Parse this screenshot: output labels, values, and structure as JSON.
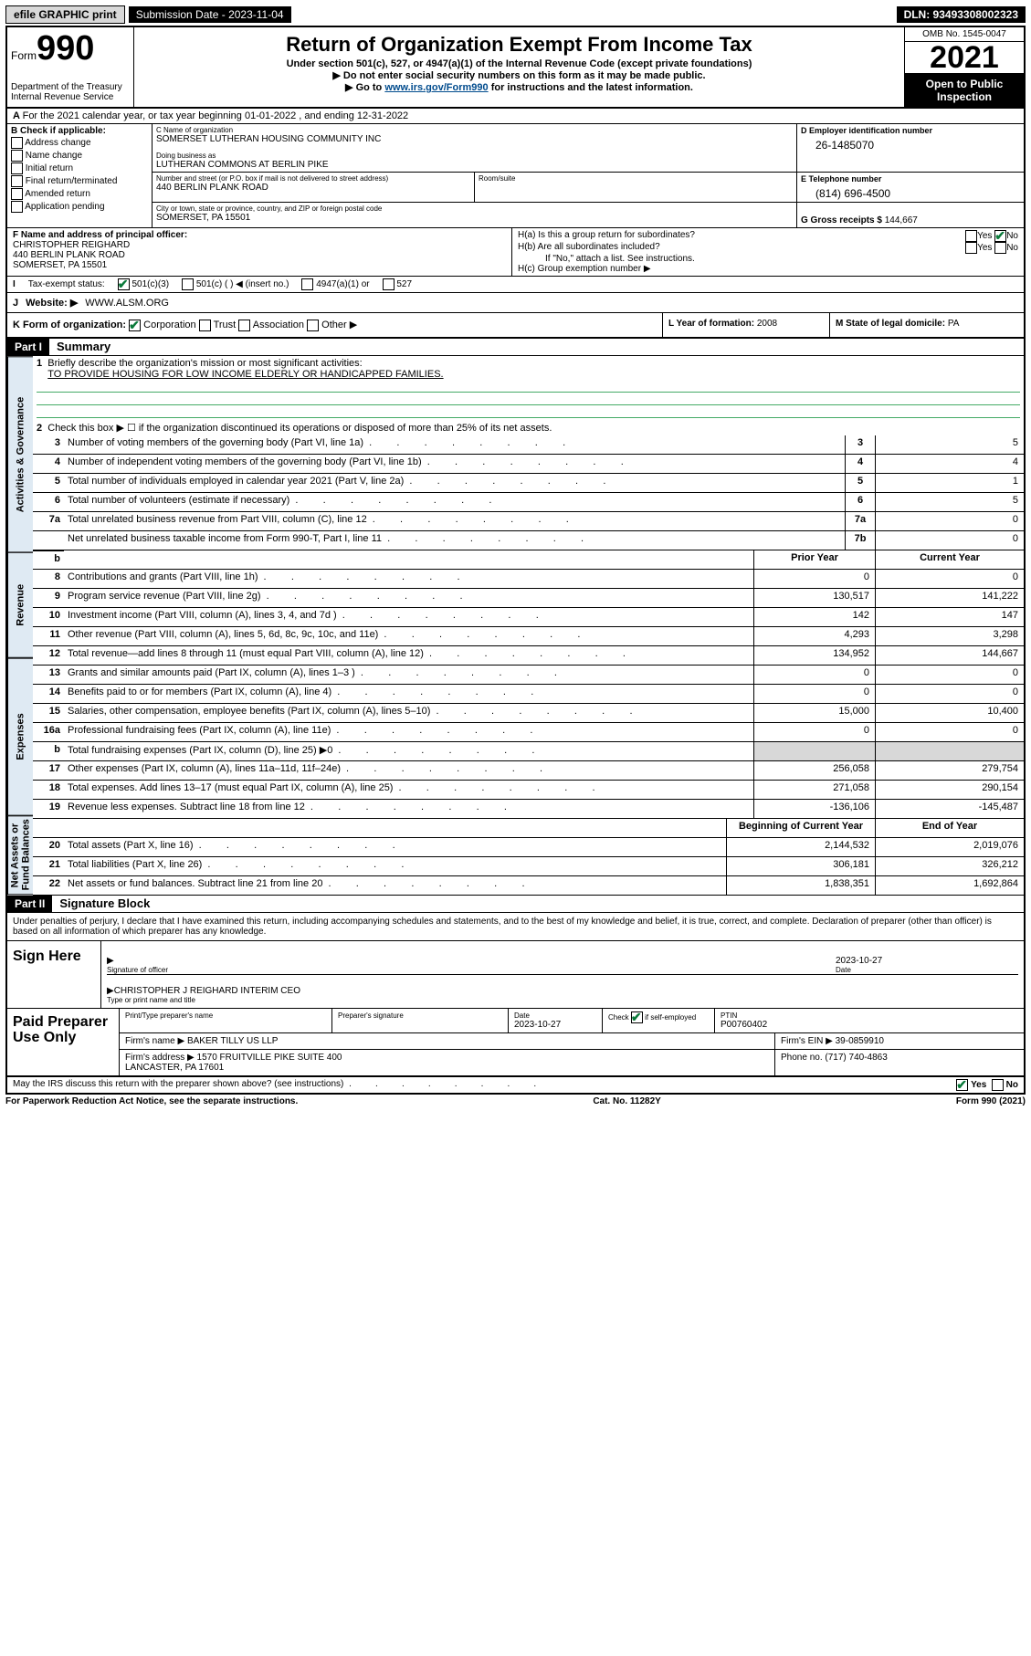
{
  "topbar": {
    "efile": "efile GRAPHIC print",
    "sub_date_label": "Submission Date - ",
    "sub_date": "2023-11-04",
    "dln": "DLN: 93493308002323"
  },
  "header": {
    "form_label": "Form",
    "form_num": "990",
    "dept": "Department of the Treasury\nInternal Revenue Service",
    "title": "Return of Organization Exempt From Income Tax",
    "sub1": "Under section 501(c), 527, or 4947(a)(1) of the Internal Revenue Code (except private foundations)",
    "sub2": "▶ Do not enter social security numbers on this form as it may be made public.",
    "sub3_pre": "▶ Go to ",
    "sub3_link": "www.irs.gov/Form990",
    "sub3_post": " for instructions and the latest information.",
    "omb": "OMB No. 1545-0047",
    "year": "2021",
    "open": "Open to Public Inspection"
  },
  "rowA": "For the 2021 calendar year, or tax year beginning 01-01-2022   , and ending 12-31-2022",
  "colB": {
    "label": "B Check if applicable:",
    "items": [
      "Address change",
      "Name change",
      "Initial return",
      "Final return/terminated",
      "Amended return",
      "Application pending"
    ]
  },
  "C": {
    "name_lbl": "C Name of organization",
    "name": "SOMERSET LUTHERAN HOUSING COMMUNITY INC",
    "dba_lbl": "Doing business as",
    "dba": "LUTHERAN COMMONS AT BERLIN PIKE",
    "addr_lbl": "Number and street (or P.O. box if mail is not delivered to street address)",
    "addr": "440 BERLIN PLANK ROAD",
    "room_lbl": "Room/suite",
    "city_lbl": "City or town, state or province, country, and ZIP or foreign postal code",
    "city": "SOMERSET, PA  15501"
  },
  "D": {
    "lbl": "D Employer identification number",
    "val": "26-1485070"
  },
  "E": {
    "lbl": "E Telephone number",
    "val": "(814) 696-4500"
  },
  "G": {
    "lbl": "G Gross receipts $",
    "val": "144,667"
  },
  "F": {
    "lbl": "F  Name and address of principal officer:",
    "name": "CHRISTOPHER REIGHARD",
    "addr1": "440 BERLIN PLANK ROAD",
    "addr2": "SOMERSET, PA  15501"
  },
  "H": {
    "a": "H(a)  Is this a group return for subordinates?",
    "b": "H(b)  Are all subordinates included?",
    "bnote": "If \"No,\" attach a list. See instructions.",
    "c": "H(c)  Group exemption number ▶",
    "yes": "Yes",
    "no": "No"
  },
  "I": {
    "lbl": "Tax-exempt status:",
    "opt1": "501(c)(3)",
    "opt2": "501(c) (  ) ◀ (insert no.)",
    "opt3": "4947(a)(1) or",
    "opt4": "527"
  },
  "J": {
    "lbl": "Website: ▶",
    "val": "WWW.ALSM.ORG"
  },
  "K": {
    "lbl": "K Form of organization:",
    "opts": [
      "Corporation",
      "Trust",
      "Association",
      "Other ▶"
    ]
  },
  "L": {
    "lbl": "L Year of formation:",
    "val": "2008"
  },
  "M": {
    "lbl": "M State of legal domicile:",
    "val": "PA"
  },
  "part1": {
    "tag": "Part I",
    "title": "Summary",
    "line1_lbl": "Briefly describe the organization's mission or most significant activities:",
    "line1_val": "TO PROVIDE HOUSING FOR LOW INCOME ELDERLY OR HANDICAPPED FAMILIES.",
    "line2": "Check this box ▶ ☐  if the organization discontinued its operations or disposed of more than 25% of its net assets.",
    "tabs": [
      "Activities & Governance",
      "Revenue",
      "Expenses",
      "Net Assets or Fund Balances"
    ],
    "head_prior": "Prior Year",
    "head_curr": "Current Year",
    "head_beg": "Beginning of Current Year",
    "head_end": "End of Year",
    "lines_top": [
      {
        "n": "3",
        "d": "Number of voting members of the governing body (Part VI, line 1a)",
        "b": "3",
        "v": "5"
      },
      {
        "n": "4",
        "d": "Number of independent voting members of the governing body (Part VI, line 1b)",
        "b": "4",
        "v": "4"
      },
      {
        "n": "5",
        "d": "Total number of individuals employed in calendar year 2021 (Part V, line 2a)",
        "b": "5",
        "v": "1"
      },
      {
        "n": "6",
        "d": "Total number of volunteers (estimate if necessary)",
        "b": "6",
        "v": "5"
      },
      {
        "n": "7a",
        "d": "Total unrelated business revenue from Part VIII, column (C), line 12",
        "b": "7a",
        "v": "0"
      },
      {
        "n": "",
        "d": "Net unrelated business taxable income from Form 990-T, Part I, line 11",
        "b": "7b",
        "v": "0"
      }
    ],
    "lines_rev": [
      {
        "n": "8",
        "d": "Contributions and grants (Part VIII, line 1h)",
        "p": "0",
        "c": "0"
      },
      {
        "n": "9",
        "d": "Program service revenue (Part VIII, line 2g)",
        "p": "130,517",
        "c": "141,222"
      },
      {
        "n": "10",
        "d": "Investment income (Part VIII, column (A), lines 3, 4, and 7d )",
        "p": "142",
        "c": "147"
      },
      {
        "n": "11",
        "d": "Other revenue (Part VIII, column (A), lines 5, 6d, 8c, 9c, 10c, and 11e)",
        "p": "4,293",
        "c": "3,298"
      },
      {
        "n": "12",
        "d": "Total revenue—add lines 8 through 11 (must equal Part VIII, column (A), line 12)",
        "p": "134,952",
        "c": "144,667"
      }
    ],
    "lines_exp": [
      {
        "n": "13",
        "d": "Grants and similar amounts paid (Part IX, column (A), lines 1–3 )",
        "p": "0",
        "c": "0"
      },
      {
        "n": "14",
        "d": "Benefits paid to or for members (Part IX, column (A), line 4)",
        "p": "0",
        "c": "0"
      },
      {
        "n": "15",
        "d": "Salaries, other compensation, employee benefits (Part IX, column (A), lines 5–10)",
        "p": "15,000",
        "c": "10,400"
      },
      {
        "n": "16a",
        "d": "Professional fundraising fees (Part IX, column (A), line 11e)",
        "p": "0",
        "c": "0"
      },
      {
        "n": "b",
        "d": "Total fundraising expenses (Part IX, column (D), line 25) ▶0",
        "p": "",
        "c": "",
        "shade": true
      },
      {
        "n": "17",
        "d": "Other expenses (Part IX, column (A), lines 11a–11d, 11f–24e)",
        "p": "256,058",
        "c": "279,754"
      },
      {
        "n": "18",
        "d": "Total expenses. Add lines 13–17 (must equal Part IX, column (A), line 25)",
        "p": "271,058",
        "c": "290,154"
      },
      {
        "n": "19",
        "d": "Revenue less expenses. Subtract line 18 from line 12",
        "p": "-136,106",
        "c": "-145,487"
      }
    ],
    "lines_net": [
      {
        "n": "20",
        "d": "Total assets (Part X, line 16)",
        "p": "2,144,532",
        "c": "2,019,076"
      },
      {
        "n": "21",
        "d": "Total liabilities (Part X, line 26)",
        "p": "306,181",
        "c": "326,212"
      },
      {
        "n": "22",
        "d": "Net assets or fund balances. Subtract line 21 from line 20",
        "p": "1,838,351",
        "c": "1,692,864"
      }
    ]
  },
  "part2": {
    "tag": "Part II",
    "title": "Signature Block",
    "penalty": "Under penalties of perjury, I declare that I have examined this return, including accompanying schedules and statements, and to the best of my knowledge and belief, it is true, correct, and complete. Declaration of preparer (other than officer) is based on all information of which preparer has any knowledge.",
    "sign_here": "Sign Here",
    "sig_of_officer": "Signature of officer",
    "date": "Date",
    "sig_date": "2023-10-27",
    "officer": "CHRISTOPHER J REIGHARD INTERIM CEO",
    "type_name": "Type or print name and title",
    "paid": "Paid Preparer Use Only",
    "prep_name_lbl": "Print/Type preparer's name",
    "prep_sig_lbl": "Preparer's signature",
    "prep_date_lbl": "Date",
    "prep_date": "2023-10-27",
    "check_if": "Check ☑ if self-employed",
    "ptin_lbl": "PTIN",
    "ptin": "P00760402",
    "firm_name_lbl": "Firm's name    ▶",
    "firm_name": "BAKER TILLY US LLP",
    "firm_ein_lbl": "Firm's EIN ▶",
    "firm_ein": "39-0859910",
    "firm_addr_lbl": "Firm's address ▶",
    "firm_addr": "1570 FRUITVILLE PIKE SUITE 400\nLANCASTER, PA  17601",
    "phone_lbl": "Phone no.",
    "phone": "(717) 740-4863",
    "may_irs": "May the IRS discuss this return with the preparer shown above? (see instructions)"
  },
  "footer": {
    "left": "For Paperwork Reduction Act Notice, see the separate instructions.",
    "center": "Cat. No. 11282Y",
    "right": "Form 990 (2021)"
  }
}
